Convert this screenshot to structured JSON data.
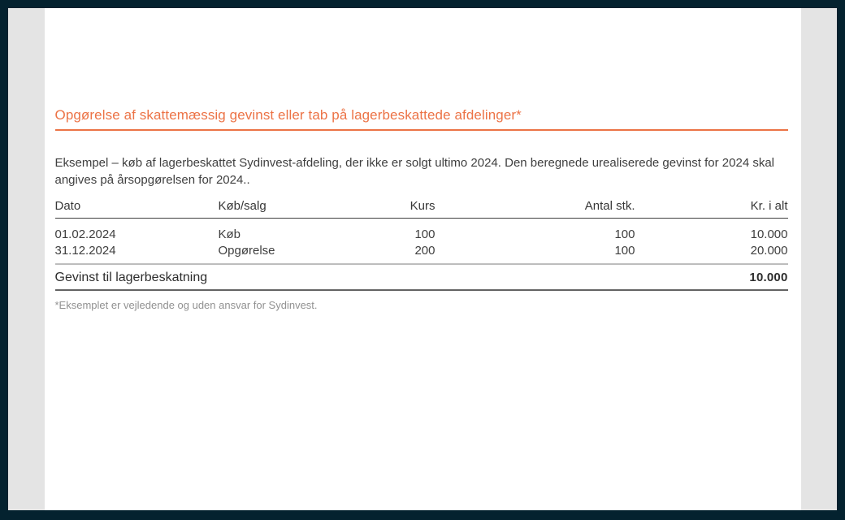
{
  "page": {
    "heading": "Opgørelse af skattemæssig gevinst eller tab på lagerbeskattede afdelinger*",
    "intro": "Eksempel – køb af lagerbeskattet Sydinvest-afdeling, der ikke er solgt ultimo 2024. Den beregnede urealiserede gevinst for 2024 skal angives på årsopgørelsen for 2024..",
    "footnote": "*Eksemplet er vejledende og uden ansvar for Sydinvest."
  },
  "table": {
    "headers": [
      "Dato",
      "Køb/salg",
      "Kurs",
      "Antal stk.",
      "Kr. i alt"
    ],
    "rows": [
      [
        "01.02.2024",
        "Køb",
        "100",
        "100",
        "10.000"
      ],
      [
        "31.12.2024",
        "Opgørelse",
        "200",
        "100",
        "20.000"
      ]
    ],
    "summary": {
      "label": "Gevinst til lagerbeskatning",
      "value": "10.000"
    }
  },
  "colors": {
    "accent_orange": "#ec7346",
    "frame_navy": "#04222f",
    "viewer_gray": "#e4e4e4",
    "body_text": "#3f3f3f",
    "footnote_gray": "#919191"
  }
}
